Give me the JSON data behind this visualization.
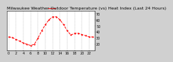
{
  "title": "Milwaukee Weather Outdoor Temperature (vs) Heat Index (Last 24 Hours)",
  "x_values": [
    0,
    1,
    2,
    3,
    4,
    5,
    6,
    7,
    8,
    9,
    10,
    11,
    12,
    13,
    14,
    15,
    16,
    17,
    18,
    19,
    20,
    21,
    22,
    23
  ],
  "temp_values": [
    32,
    31,
    28,
    25,
    22,
    20,
    18,
    20,
    30,
    42,
    52,
    60,
    65,
    65,
    60,
    52,
    42,
    35,
    38,
    38,
    36,
    34,
    32,
    32
  ],
  "line_color": "#ff0000",
  "background_color": "#ffffff",
  "grid_color": "#888888",
  "ylim": [
    10,
    75
  ],
  "xlim": [
    -0.5,
    23.5
  ],
  "yticks": [
    20,
    30,
    40,
    50,
    60,
    70
  ],
  "xticks": [
    0,
    2,
    4,
    6,
    8,
    10,
    12,
    14,
    16,
    18,
    20,
    22
  ],
  "title_fontsize": 4.5,
  "tick_fontsize": 3.5,
  "fig_bg": "#d0d0d0"
}
